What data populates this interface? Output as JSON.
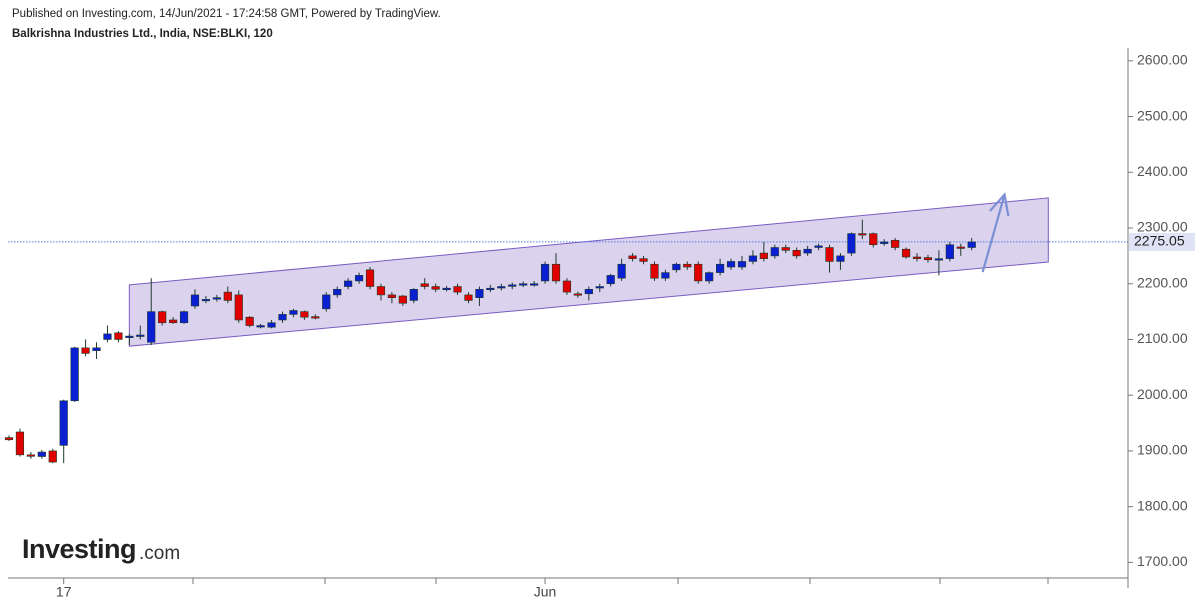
{
  "header": {
    "published": "Published on Investing.com, 14/Jun/2021 - 17:24:58 GMT, Powered by TradingView.",
    "symbol": "Balkrishna Industries Ltd., India, NSE:BLKI, 120"
  },
  "logo": {
    "brand": "Investing",
    "suffix": ".com"
  },
  "chart_data": {
    "type": "candlestick",
    "up_color": "#0a1ed2",
    "down_color": "#e00000",
    "open": [
      1924,
      1934,
      1893,
      1890,
      1900,
      1910,
      1990,
      2085,
      2080,
      2100,
      2112,
      2105,
      2106,
      2095,
      2150,
      2135,
      2130,
      2160,
      2170,
      2173,
      2185,
      2180,
      2140,
      2124,
      2122,
      2135,
      2145,
      2150,
      2141,
      2155,
      2180,
      2195,
      2205,
      2225,
      2195,
      2180,
      2178,
      2170,
      2200,
      2195,
      2191,
      2195,
      2180,
      2175,
      2190,
      2193,
      2196,
      2198,
      2199,
      2205,
      2235,
      2205,
      2182,
      2182,
      2193,
      2200,
      2210,
      2250,
      2245,
      2235,
      2210,
      2225,
      2235,
      2235,
      2205,
      2220,
      2230,
      2230,
      2240,
      2255,
      2250,
      2265,
      2260,
      2255,
      2265,
      2265,
      2240,
      2255,
      2290,
      2290,
      2272,
      2278,
      2262,
      2248,
      2247,
      2243,
      2245,
      2266,
      2265
    ],
    "high": [
      1928,
      1940,
      1898,
      1902,
      1904,
      1992,
      2087,
      2100,
      2095,
      2125,
      2115,
      2110,
      2125,
      2210,
      2152,
      2140,
      2152,
      2190,
      2178,
      2180,
      2195,
      2188,
      2142,
      2128,
      2135,
      2150,
      2155,
      2152,
      2145,
      2185,
      2195,
      2210,
      2220,
      2230,
      2200,
      2185,
      2180,
      2192,
      2210,
      2200,
      2196,
      2200,
      2185,
      2195,
      2198,
      2200,
      2202,
      2204,
      2205,
      2240,
      2255,
      2210,
      2186,
      2195,
      2200,
      2218,
      2245,
      2255,
      2250,
      2240,
      2225,
      2238,
      2240,
      2240,
      2222,
      2245,
      2245,
      2250,
      2260,
      2275,
      2270,
      2270,
      2265,
      2268,
      2272,
      2270,
      2255,
      2292,
      2315,
      2292,
      2280,
      2282,
      2265,
      2255,
      2252,
      2260,
      2275,
      2272,
      2282
    ],
    "low": [
      1918,
      1890,
      1886,
      1886,
      1878,
      1878,
      1988,
      2070,
      2065,
      2095,
      2095,
      2090,
      2100,
      2090,
      2125,
      2128,
      2128,
      2155,
      2165,
      2168,
      2165,
      2130,
      2122,
      2120,
      2120,
      2130,
      2140,
      2135,
      2136,
      2150,
      2175,
      2190,
      2200,
      2190,
      2170,
      2165,
      2160,
      2165,
      2190,
      2185,
      2186,
      2180,
      2165,
      2160,
      2185,
      2188,
      2190,
      2194,
      2195,
      2200,
      2200,
      2180,
      2175,
      2170,
      2185,
      2195,
      2205,
      2240,
      2235,
      2205,
      2205,
      2220,
      2225,
      2200,
      2200,
      2215,
      2225,
      2225,
      2235,
      2240,
      2245,
      2255,
      2245,
      2250,
      2260,
      2220,
      2225,
      2250,
      2280,
      2265,
      2268,
      2260,
      2245,
      2240,
      2238,
      2215,
      2240,
      2250,
      2260
    ],
    "close": [
      1920,
      1893,
      1892,
      1898,
      1880,
      1990,
      2085,
      2075,
      2085,
      2110,
      2100,
      2106,
      2108,
      2150,
      2130,
      2130,
      2150,
      2180,
      2172,
      2175,
      2170,
      2135,
      2125,
      2125,
      2130,
      2145,
      2152,
      2140,
      2140,
      2180,
      2190,
      2205,
      2215,
      2195,
      2180,
      2175,
      2165,
      2190,
      2195,
      2190,
      2192,
      2185,
      2170,
      2190,
      2192,
      2195,
      2198,
      2200,
      2200,
      2235,
      2205,
      2185,
      2180,
      2190,
      2195,
      2215,
      2235,
      2245,
      2240,
      2210,
      2220,
      2235,
      2230,
      2205,
      2220,
      2235,
      2240,
      2240,
      2250,
      2245,
      2265,
      2260,
      2250,
      2262,
      2268,
      2240,
      2250,
      2290,
      2288,
      2270,
      2275,
      2265,
      2248,
      2245,
      2243,
      2245,
      2270,
      2265,
      2275
    ],
    "x_labels": [
      {
        "index": 5,
        "label": "17"
      },
      {
        "index": 49,
        "label": "Jun"
      }
    ],
    "ylim": [
      1672,
      2623
    ],
    "yticks": [
      {
        "value": 1700,
        "label": "1700.00"
      },
      {
        "value": 1800,
        "label": "1800.00"
      },
      {
        "value": 1900,
        "label": "1900.00"
      },
      {
        "value": 2000,
        "label": "2000.00"
      },
      {
        "value": 2100,
        "label": "2100.00"
      },
      {
        "value": 2200,
        "label": "2200.00"
      },
      {
        "value": 2300,
        "label": "2300.00"
      },
      {
        "value": 2400,
        "label": "2400.00"
      },
      {
        "value": 2500,
        "label": "2500.00"
      },
      {
        "value": 2600,
        "label": "2600.00"
      }
    ],
    "last_price": 2275.05,
    "channel": {
      "start_index": 11,
      "end_index": 95,
      "upper": [
        2198,
        2354
      ],
      "lower": [
        2088,
        2239
      ],
      "color": "#7a5cc0"
    },
    "arrow": {
      "from_index": 89,
      "to_index": 91,
      "from": 2221,
      "to": 2360,
      "color": "#7b8fd4"
    }
  }
}
